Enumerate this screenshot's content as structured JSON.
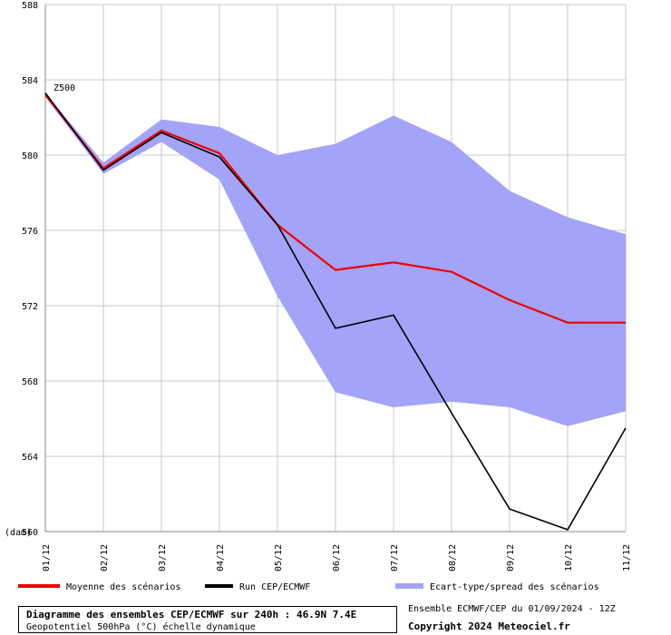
{
  "chart_data": {
    "type": "line",
    "variable_label": "Z500",
    "unit_label": "(dam)",
    "x": [
      "01/12",
      "02/12",
      "03/12",
      "04/12",
      "05/12",
      "06/12",
      "07/12",
      "08/12",
      "09/12",
      "10/12",
      "11/12"
    ],
    "ylim": [
      560,
      588
    ],
    "yticks": [
      560,
      564,
      568,
      572,
      576,
      580,
      584,
      588
    ],
    "grid": true,
    "series": [
      {
        "name": "Moyenne des scénarios",
        "type": "line",
        "color": "#ee0000",
        "values": [
          583.2,
          579.3,
          581.3,
          580.1,
          576.3,
          573.9,
          574.3,
          573.8,
          572.3,
          571.1,
          571.1
        ]
      },
      {
        "name": "Run CEP/ECMWF",
        "type": "line",
        "color": "#000000",
        "values": [
          583.3,
          579.2,
          581.2,
          579.9,
          576.3,
          570.8,
          571.5,
          566.3,
          561.2,
          560.1,
          565.5
        ]
      },
      {
        "name": "Ecart-type/spread des scénarios",
        "type": "band",
        "color": "#a3a3f8",
        "upper": [
          583.3,
          579.6,
          581.9,
          581.5,
          580.0,
          580.6,
          582.1,
          580.7,
          578.1,
          576.7,
          575.8
        ],
        "lower": [
          583.1,
          579.0,
          580.7,
          578.7,
          572.5,
          567.4,
          566.6,
          566.9,
          566.6,
          565.6,
          566.4
        ]
      }
    ]
  },
  "footer": {
    "title": "Diagramme des ensembles CEP/ECMWF sur 240h : 46.9N 7.4E",
    "subtitle": "Geopotentiel 500hPa (°C) échelle dynamique",
    "run_info": "Ensemble ECMWF/CEP du 01/09/2024 - 12Z",
    "copyright": "Copyright 2024 Meteociel.fr"
  }
}
